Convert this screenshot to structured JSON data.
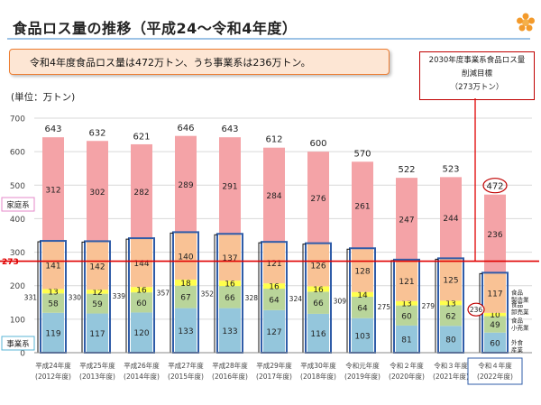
{
  "title": "食品ロス量の推移（平成24～令和4年度）",
  "callout": "令和4年度食品ロス量は472万トン、うち事業系は236万トン。",
  "target_note": {
    "line1": "2030年度事業系食品ロス量",
    "line2": "削減目標",
    "line3": "（273万トン）"
  },
  "unit_label": "(単位：万トン)",
  "colors": {
    "household": "#f4a3a7",
    "manufacturing": "#f9c295",
    "wholesale": "#ffff4d",
    "retail": "#b9d59a",
    "restaurant": "#94c6dc",
    "business_outline": "#2f5ca8",
    "target_line": "#e00000"
  },
  "chart_data": {
    "type": "bar",
    "stacked": true,
    "categories": [
      [
        "平成24年度",
        "(2012年度)"
      ],
      [
        "平成25年度",
        "(2013年度)"
      ],
      [
        "平成26年度",
        "(2014年度)"
      ],
      [
        "平成27年度",
        "(2015年度)"
      ],
      [
        "平成28年度",
        "(2016年度)"
      ],
      [
        "平成29年度",
        "(2017年度)"
      ],
      [
        "平成30年度",
        "(2018年度)"
      ],
      [
        "令和元年度",
        "(2019年度)"
      ],
      [
        "令和２年度",
        "(2020年度)"
      ],
      [
        "令和３年度",
        "(2021年度)"
      ],
      [
        "令和４年度",
        "(2022年度)"
      ]
    ],
    "series": [
      {
        "key": "restaurant",
        "values": [
          119,
          117,
          120,
          133,
          133,
          127,
          116,
          103,
          81,
          80,
          60
        ]
      },
      {
        "key": "retail",
        "values": [
          58,
          59,
          60,
          67,
          66,
          64,
          66,
          64,
          60,
          62,
          49
        ]
      },
      {
        "key": "wholesale",
        "values": [
          13,
          12,
          16,
          18,
          16,
          16,
          16,
          14,
          13,
          13,
          10
        ]
      },
      {
        "key": "manufacturing",
        "values": [
          141,
          142,
          144,
          140,
          137,
          121,
          126,
          128,
          121,
          125,
          117
        ]
      },
      {
        "key": "household",
        "values": [
          312,
          302,
          282,
          289,
          291,
          284,
          276,
          261,
          247,
          244,
          236
        ]
      }
    ],
    "totals": [
      643,
      632,
      621,
      646,
      643,
      612,
      600,
      570,
      522,
      523,
      472
    ],
    "business_totals": [
      331,
      330,
      339,
      357,
      352,
      328,
      324,
      309,
      275,
      279,
      236
    ],
    "yticks": [
      0,
      100,
      200,
      300,
      400,
      500,
      600,
      700
    ],
    "ylim": [
      0,
      700
    ],
    "target_value": 273,
    "target_label": "273",
    "label_household": "家庭系",
    "label_business": "事業系",
    "legend_last_bar": [
      {
        "key": "manufacturing",
        "lines": [
          "食品",
          "製造業"
        ]
      },
      {
        "key": "wholesale",
        "lines": [
          "食品",
          "卸売業"
        ]
      },
      {
        "key": "retail",
        "lines": [
          "食品",
          "小売業"
        ]
      },
      {
        "key": "restaurant",
        "lines": [
          "外食",
          "産業"
        ]
      }
    ]
  }
}
